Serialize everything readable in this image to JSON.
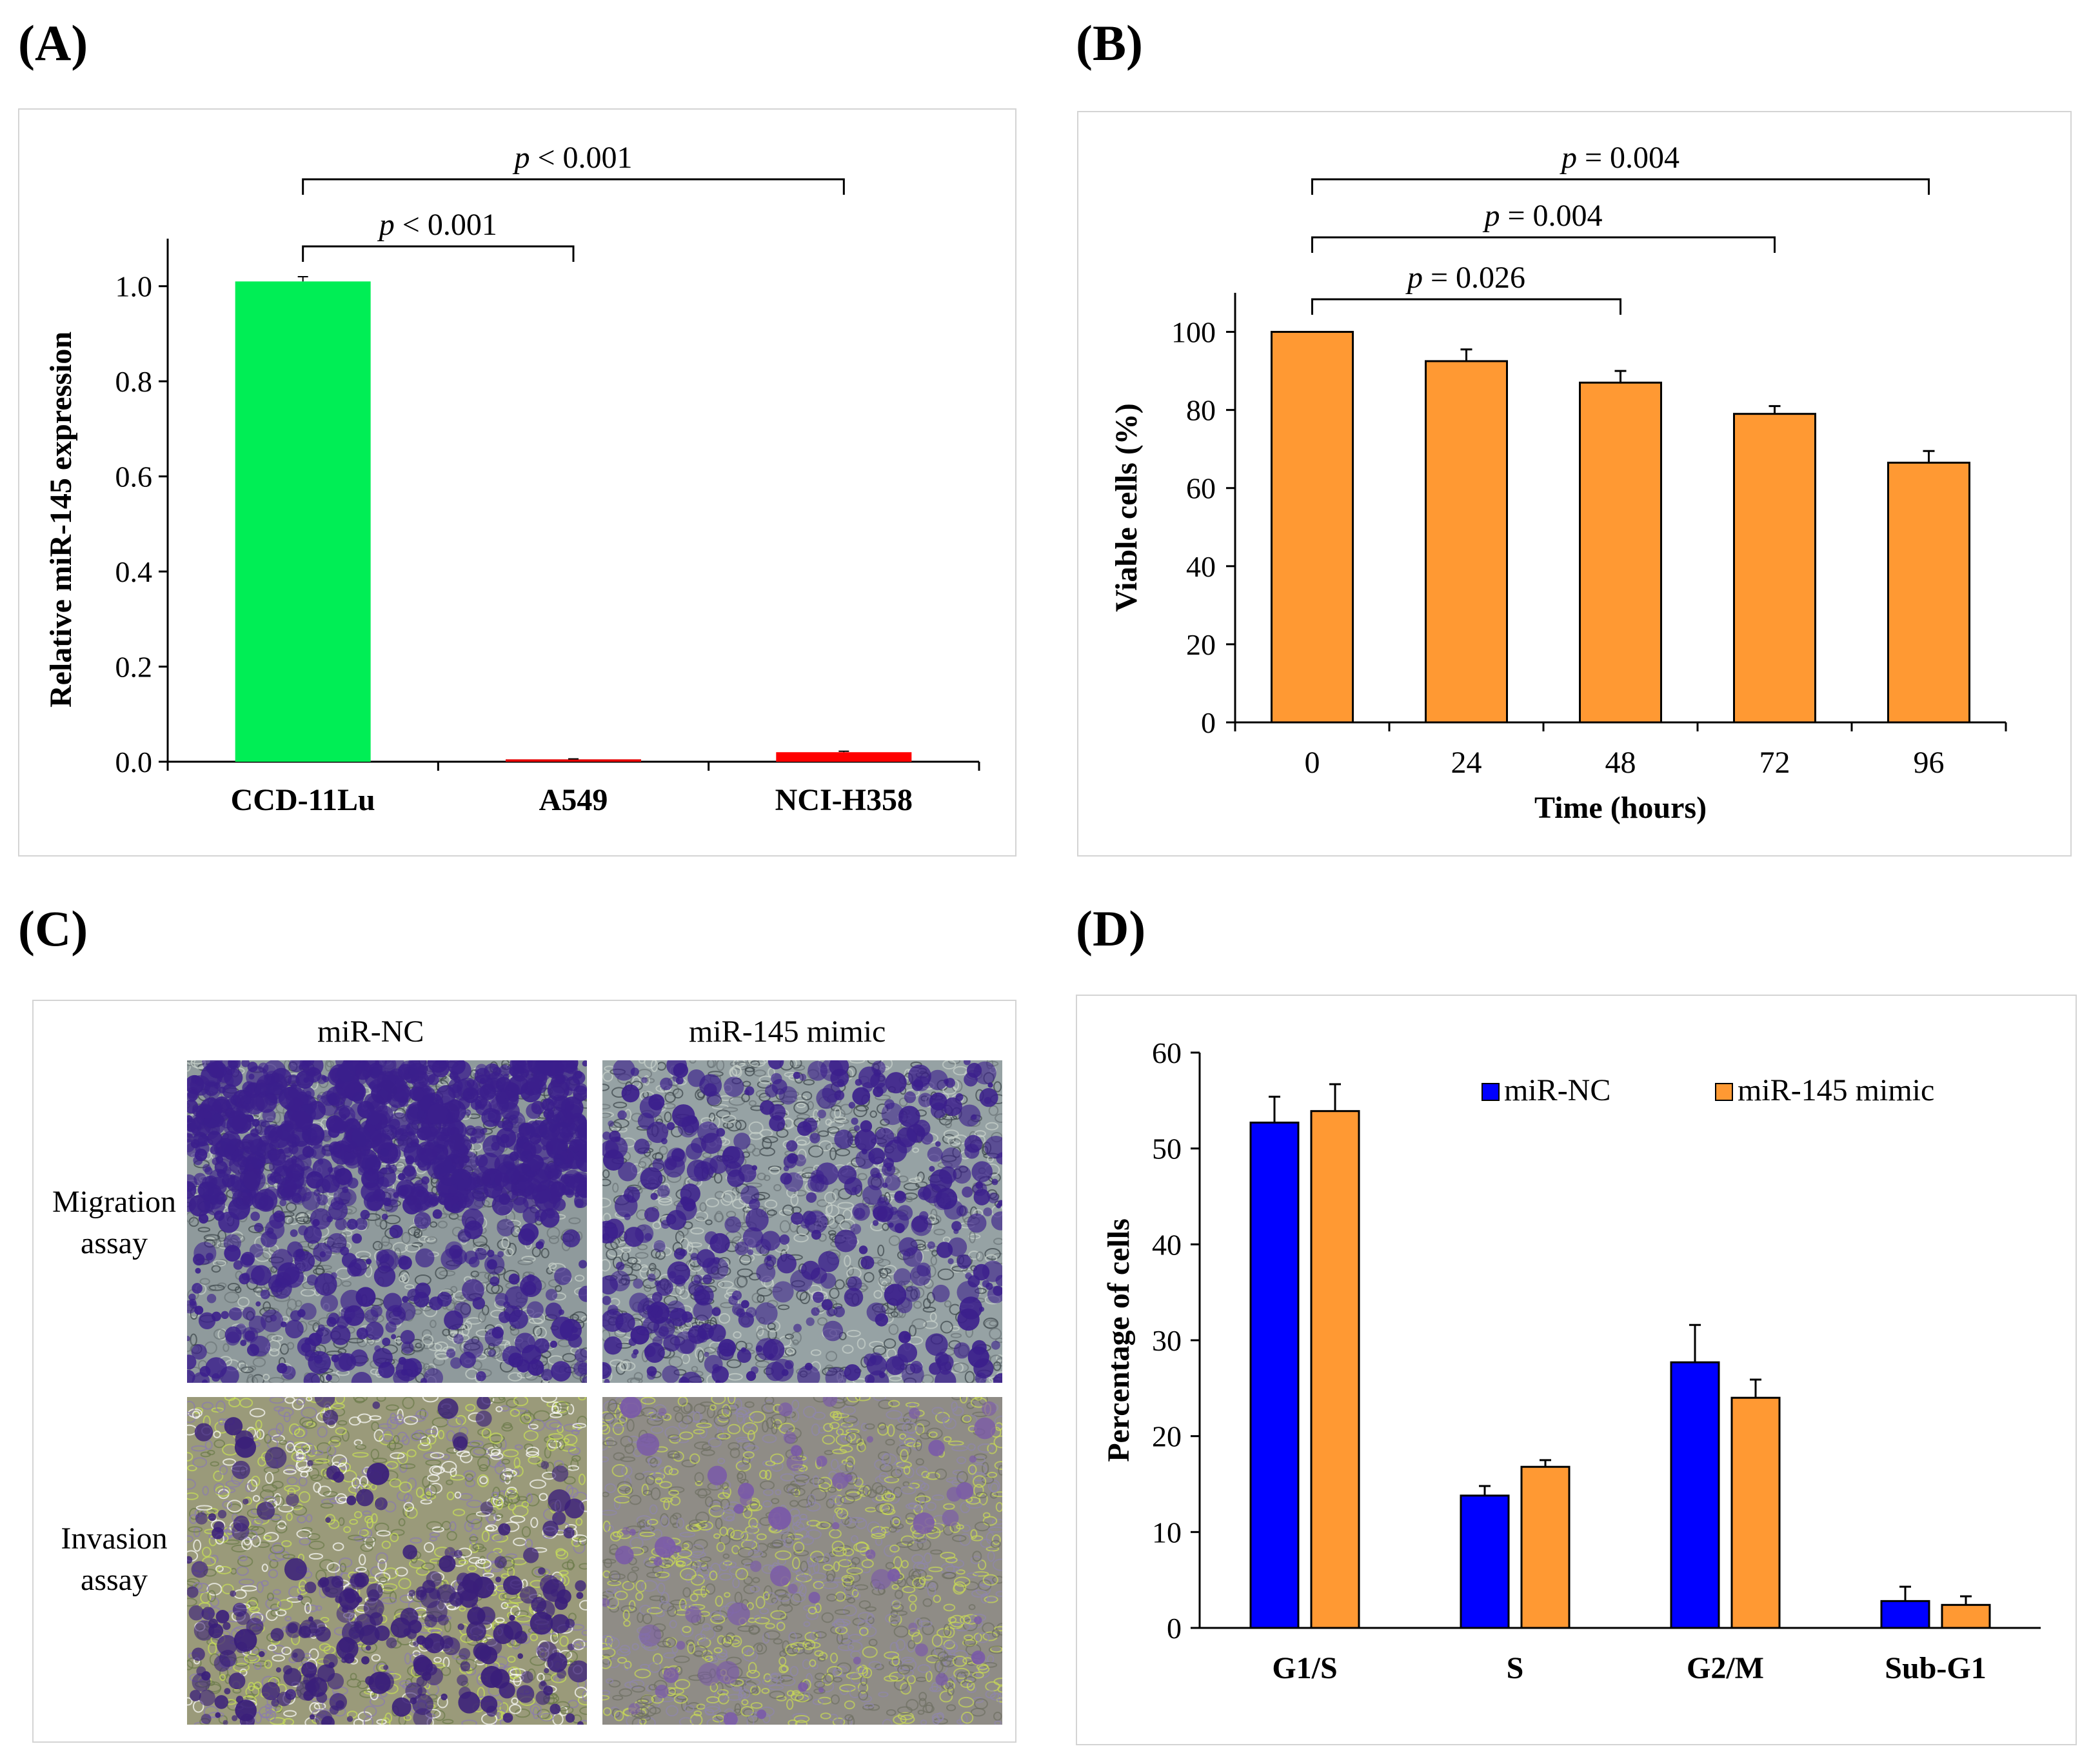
{
  "panels": {
    "A": {
      "letter": "(A)"
    },
    "B": {
      "letter": "(B)"
    },
    "C": {
      "letter": "(C)"
    },
    "D": {
      "letter": "(D)"
    }
  },
  "chart_data": [
    {
      "id": "A",
      "type": "bar",
      "categories": [
        "CCD-11Lu",
        "A549",
        "NCI-H358"
      ],
      "values": [
        1.01,
        0.005,
        0.02
      ],
      "errors": [
        0.01,
        0.001,
        0.002
      ],
      "colors": [
        "#00ee55",
        "#e60000",
        "#ff0000"
      ],
      "ylabel": "Relative miR-145 expression",
      "ylim": [
        0,
        1.1
      ],
      "yticks": [
        "0.0",
        "0.2",
        "0.4",
        "0.6",
        "0.8",
        "1.0"
      ],
      "yticks_values": [
        0,
        0.2,
        0.4,
        0.6,
        0.8,
        1.0
      ],
      "brackets": [
        {
          "from": 0,
          "to": 1,
          "p": "p",
          "text": " < 0.001"
        },
        {
          "from": 0,
          "to": 2,
          "p": "p",
          "text": " < 0.001"
        }
      ]
    },
    {
      "id": "B",
      "type": "bar",
      "categories": [
        "0",
        "24",
        "48",
        "72",
        "96"
      ],
      "values": [
        100,
        92.5,
        87,
        79,
        66.5
      ],
      "errors": [
        0,
        3,
        3,
        2,
        3
      ],
      "color": "#ff9933",
      "xlabel": "Time (hours)",
      "ylabel": "Viable cells (%)",
      "ylim": [
        0,
        110
      ],
      "yticks": [
        "0",
        "20",
        "40",
        "60",
        "80",
        "100"
      ],
      "yticks_values": [
        0,
        20,
        40,
        60,
        80,
        100
      ],
      "brackets": [
        {
          "from": 0,
          "to": 2,
          "p": "p",
          "text": " = 0.026"
        },
        {
          "from": 0,
          "to": 3,
          "p": "p",
          "text": " = 0.004"
        },
        {
          "from": 0,
          "to": 4,
          "p": "p",
          "text": " = 0.004"
        }
      ]
    },
    {
      "id": "D",
      "type": "bar",
      "categories": [
        "G1/S",
        "S",
        "G2/M",
        "Sub-G1"
      ],
      "series": [
        {
          "name": "miR-NC",
          "color": "#0000ff",
          "values": [
            52.7,
            13.8,
            27.7,
            2.8
          ],
          "errors": [
            2.7,
            1.0,
            3.9,
            1.5
          ]
        },
        {
          "name": "miR-145 mimic",
          "color": "#ff9933",
          "values": [
            53.9,
            16.8,
            24.0,
            2.4
          ],
          "errors": [
            2.8,
            0.7,
            1.9,
            0.9
          ]
        }
      ],
      "ylabel": "Percentage of cells",
      "ylim": [
        0,
        60
      ],
      "yticks": [
        "0",
        "10",
        "20",
        "30",
        "40",
        "50",
        "60"
      ],
      "yticks_values": [
        0,
        10,
        20,
        30,
        40,
        50,
        60
      ]
    }
  ],
  "micrographs": {
    "col_headers": [
      "miR-NC",
      "miR-145 mimic"
    ],
    "rows": [
      {
        "label_line1": "Migration",
        "label_line2": "assay"
      },
      {
        "label_line1": "Invasion",
        "label_line2": "assay"
      }
    ]
  }
}
